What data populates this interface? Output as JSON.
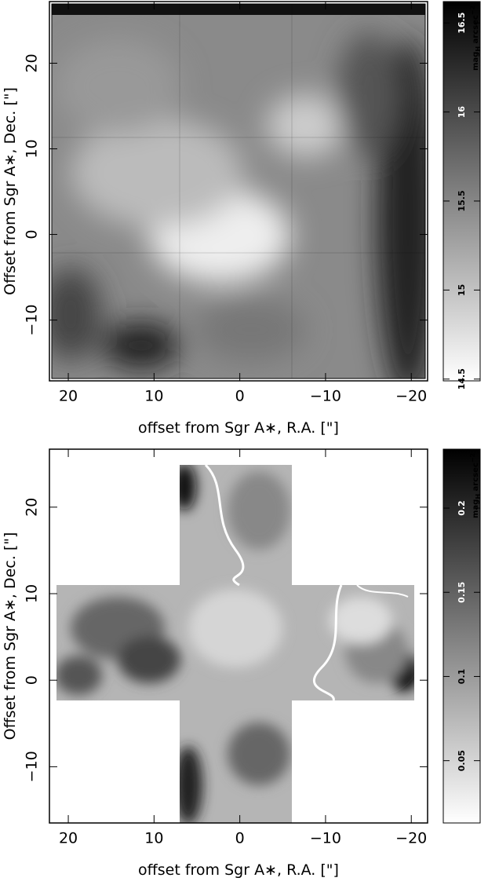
{
  "chart_data": [
    {
      "type": "image",
      "xlabel": "offset from Sgr A∗, R.A.   [\"]",
      "ylabel": "Offset from Sgr A∗, Dec.  [\"]",
      "xlim": [
        22.2,
        -21.9
      ],
      "ylim": [
        -17.1,
        27.2
      ],
      "xticks": [
        20,
        10,
        0,
        {
          "value": -10,
          "label": "−10"
        },
        {
          "value": -20,
          "label": "−20"
        }
      ],
      "yticks": [
        {
          "value": -10,
          "label": "−10"
        },
        0,
        10,
        20
      ],
      "colorbar": {
        "label": "mag",
        "label_sub": "H",
        "label_unit": " arcsec",
        "label_sup": "−2",
        "clim": [
          14.49,
          16.62
        ],
        "ticks": [
          14.5,
          15,
          15.5,
          16,
          16.5
        ]
      }
    },
    {
      "type": "image",
      "xlabel": "offset from Sgr A∗, R.A.   [\"]",
      "ylabel": "Offset from Sgr A∗, Dec.  [\"]",
      "xlim": [
        22.2,
        -21.9
      ],
      "ylim": [
        -16.5,
        26.7
      ],
      "xticks": [
        20,
        10,
        0,
        {
          "value": -10,
          "label": "−10"
        },
        {
          "value": -20,
          "label": "−20"
        }
      ],
      "yticks": [
        {
          "value": -10,
          "label": "−10"
        },
        0,
        10,
        20
      ],
      "colorbar": {
        "label": "mag",
        "label_sub": "H",
        "label_unit": " arcsec",
        "label_sup": "−2",
        "clim": [
          0.013,
          0.235
        ],
        "ticks": [
          0.05,
          0.1,
          0.15,
          0.2
        ]
      }
    }
  ]
}
